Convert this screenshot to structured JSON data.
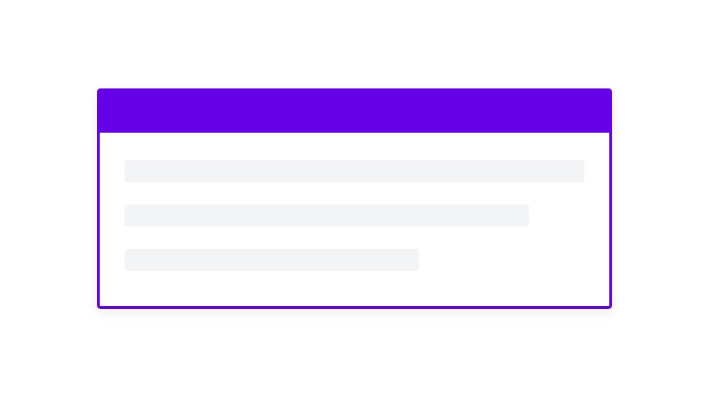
{
  "colors": {
    "accent": "#6600e6",
    "skeleton": "#f3f4f6",
    "background": "#ffffff"
  },
  "skeleton_lines": [
    {
      "fill_fraction": 1.0
    },
    {
      "fill_fraction": 0.88
    },
    {
      "fill_fraction": 0.64
    }
  ]
}
